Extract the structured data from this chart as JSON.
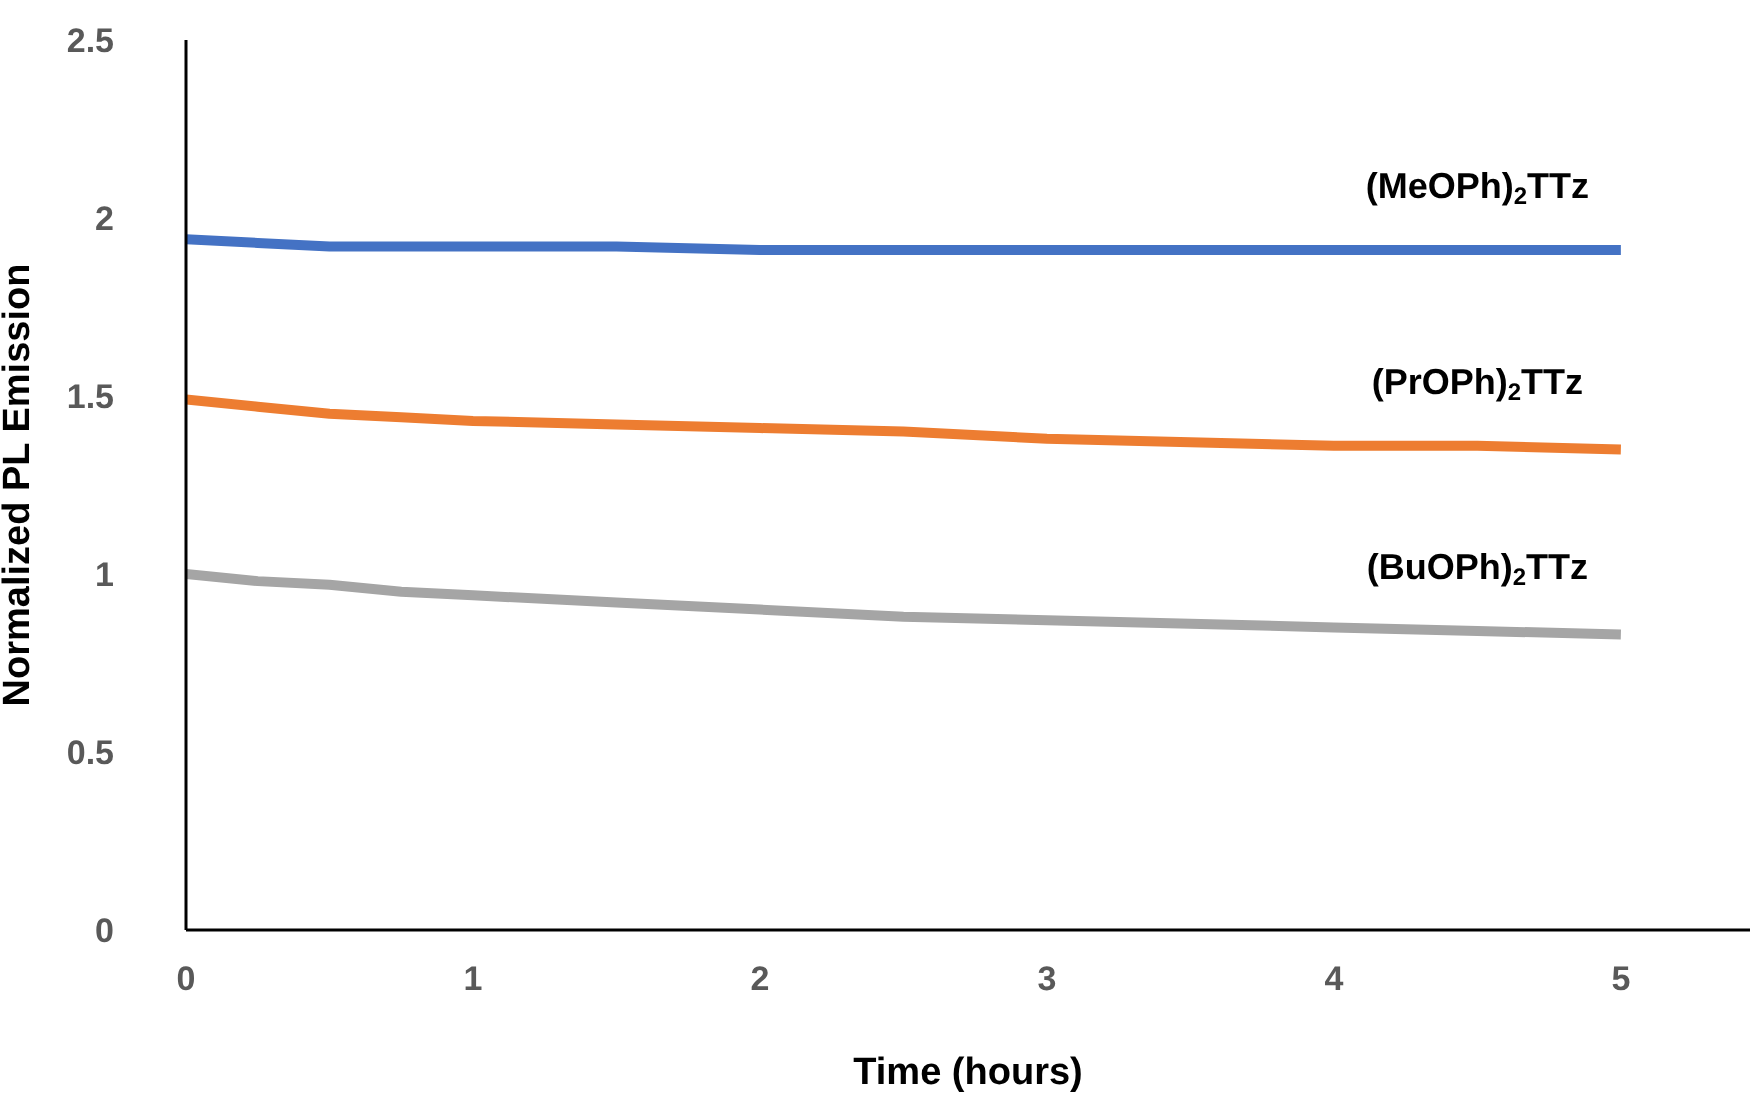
{
  "chart_data": {
    "type": "line",
    "xlabel": "Time (hours)",
    "ylabel": "Normalized PL Emission",
    "xlim": [
      0,
      5.45
    ],
    "xticks": [
      0,
      1,
      2,
      3,
      4,
      5
    ],
    "ylim": [
      0,
      2.5
    ],
    "yticks": [
      0,
      0.5,
      1,
      1.5,
      2,
      2.5
    ],
    "grid": false,
    "legend": false,
    "marker": "none",
    "line_style": "solid",
    "x": [
      0,
      0.25,
      0.5,
      0.75,
      1,
      1.5,
      2,
      2.5,
      3,
      3.5,
      4,
      4.5,
      5
    ],
    "series": [
      {
        "name": "(MeOPh)$_{2}$TTz",
        "color": "#4472c4",
        "values": [
          1.94,
          1.93,
          1.92,
          1.92,
          1.92,
          1.92,
          1.91,
          1.91,
          1.91,
          1.91,
          1.91,
          1.91,
          1.91
        ]
      },
      {
        "name": "(PrOPh)$_{2}$TTz",
        "color": "#ed7d31",
        "values": [
          1.49,
          1.47,
          1.45,
          1.44,
          1.43,
          1.42,
          1.41,
          1.4,
          1.38,
          1.37,
          1.36,
          1.36,
          1.35
        ]
      },
      {
        "name": "(BuOPh)$_{2}$TTz",
        "color": "#a5a5a5",
        "values": [
          1.0,
          0.98,
          0.97,
          0.95,
          0.94,
          0.92,
          0.9,
          0.88,
          0.87,
          0.86,
          0.85,
          0.84,
          0.83
        ]
      }
    ]
  }
}
